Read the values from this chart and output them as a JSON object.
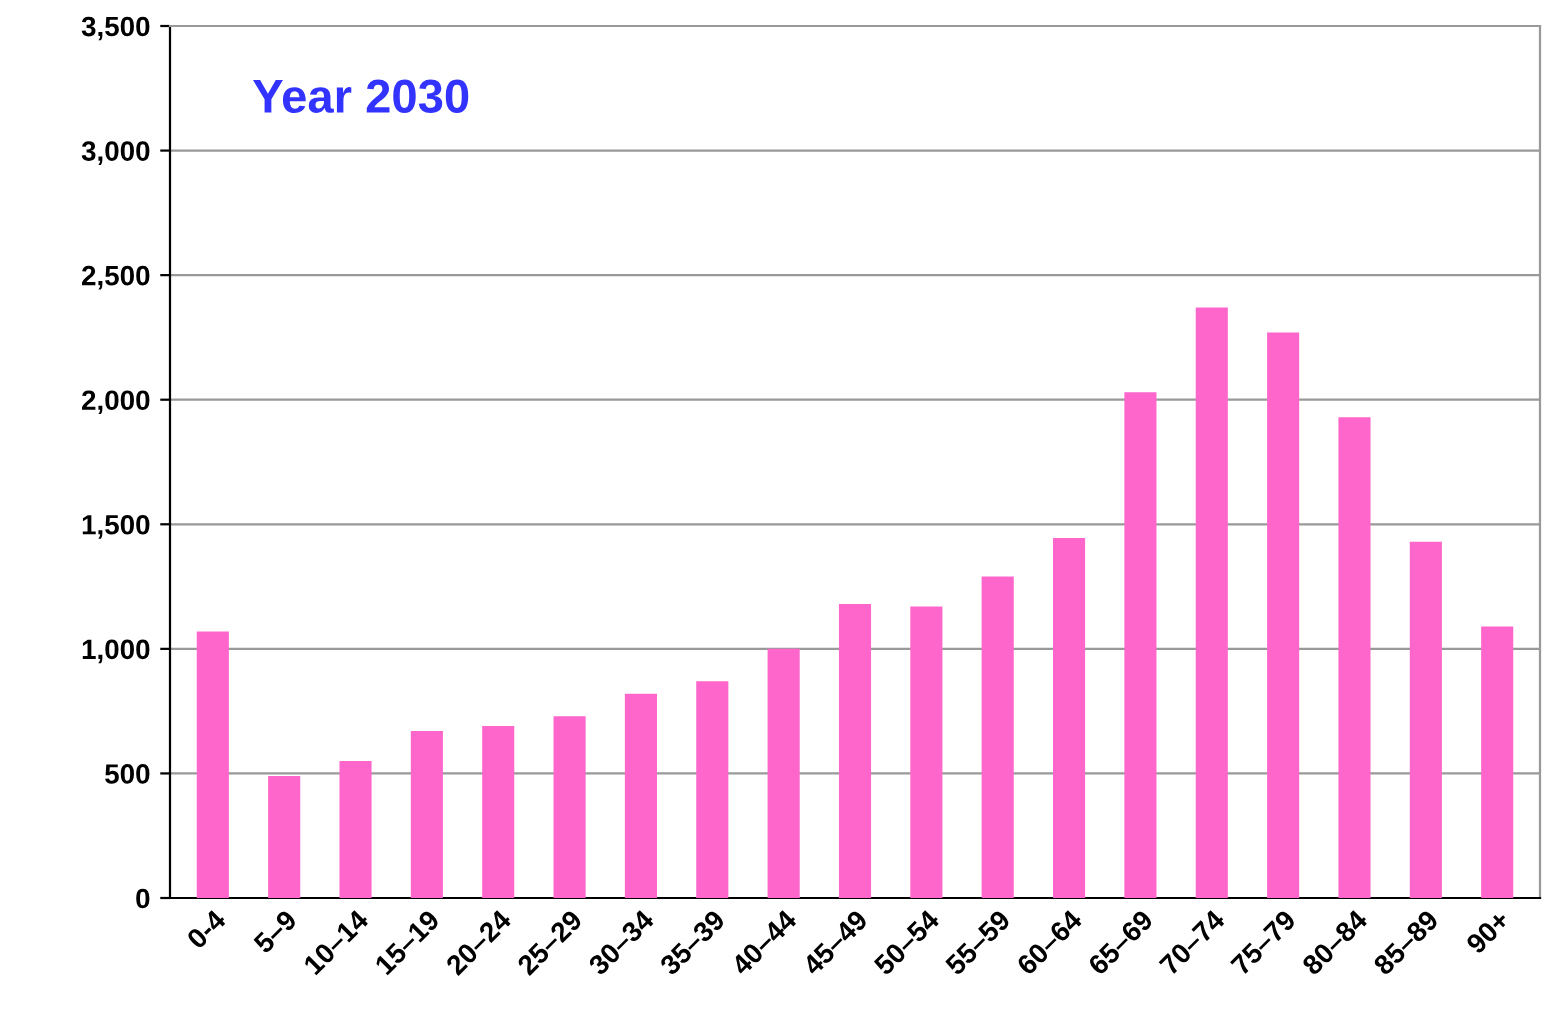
{
  "chart_data": {
    "type": "bar",
    "title": "Year 2030",
    "categories": [
      "0-4",
      "5–9",
      "10–14",
      "15–19",
      "20–24",
      "25–29",
      "30–34",
      "35–39",
      "40–44",
      "45–49",
      "50–54",
      "55–59",
      "60–64",
      "65–69",
      "70–74",
      "75–79",
      "80–84",
      "85–89",
      "90+"
    ],
    "values": [
      1070,
      490,
      550,
      670,
      690,
      730,
      820,
      870,
      1000,
      1180,
      1170,
      1290,
      1445,
      2030,
      2370,
      2270,
      1930,
      1430,
      1090
    ],
    "color": "#ff66cc",
    "ylim": [
      0,
      3500
    ],
    "yticks": [
      {
        "value": 0,
        "label": "0"
      },
      {
        "value": 500,
        "label": "500"
      },
      {
        "value": 1000,
        "label": "1,000"
      },
      {
        "value": 1500,
        "label": "1,500"
      },
      {
        "value": 2000,
        "label": "2,000"
      },
      {
        "value": 2500,
        "label": "2,500"
      },
      {
        "value": 3000,
        "label": "3,000"
      },
      {
        "value": 3500,
        "label": "3,500"
      }
    ],
    "grid": "y"
  }
}
